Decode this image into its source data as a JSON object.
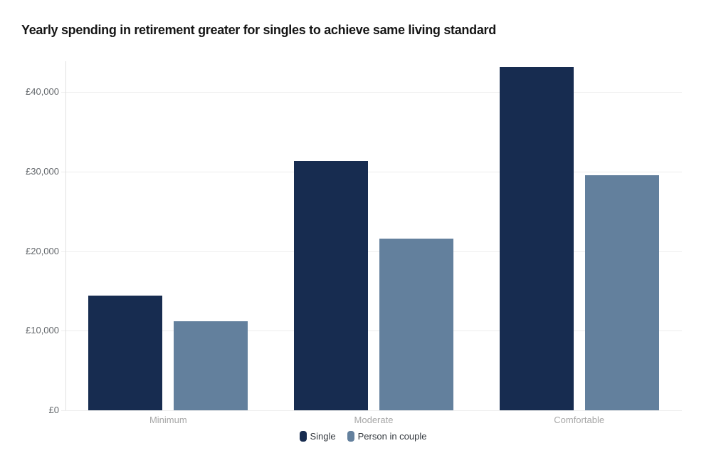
{
  "title": "Yearly spending in retirement greater for singles to achieve same living standard",
  "colors": {
    "single_bar": "#172c50",
    "couple_bar": "#63809d",
    "gridline": "#ededed",
    "axis_line": "#e0e0e0",
    "y_label_text": "#64686c",
    "x_label_text": "#a7a7a7",
    "legend_text": "#33383e",
    "title_text": "#161616",
    "background": "#ffffff"
  },
  "chart_data": {
    "type": "bar",
    "title": "Yearly spending in retirement greater for singles to achieve same living standard",
    "categories": [
      "Minimum",
      "Moderate",
      "Comfortable"
    ],
    "series": [
      {
        "name": "Single",
        "values": [
          14400,
          31300,
          43100
        ],
        "color": "#172c50"
      },
      {
        "name": "Person in couple",
        "values": [
          11200,
          21550,
          29500
        ],
        "color": "#63809d"
      }
    ],
    "xlabel": "",
    "ylabel": "",
    "currency": "£",
    "ylim": [
      0,
      43800
    ],
    "y_ticks": [
      0,
      10000,
      20000,
      30000,
      40000
    ],
    "y_tick_labels": [
      "£0",
      "£10,000",
      "£20,000",
      "£30,000",
      "£40,000"
    ],
    "grid": "horizontal",
    "legend_position": "bottom-center"
  }
}
